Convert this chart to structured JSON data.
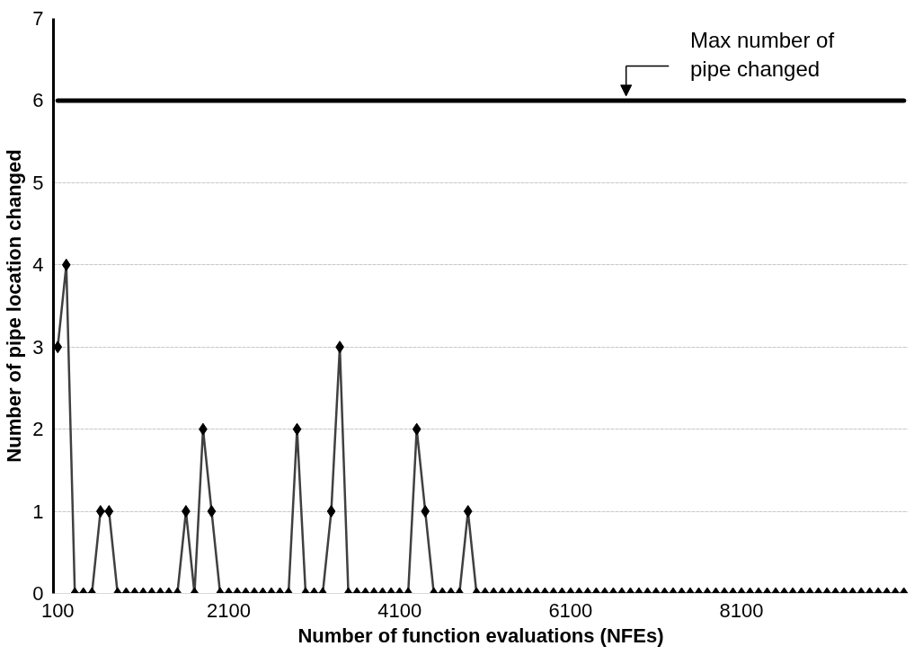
{
  "chart_data": {
    "type": "line",
    "xlabel": "Number of function evaluations (NFEs)",
    "ylabel": "Number of pipe location changed",
    "x": [
      100,
      200,
      300,
      400,
      500,
      600,
      700,
      800,
      900,
      1000,
      1100,
      1200,
      1300,
      1400,
      1500,
      1600,
      1700,
      1800,
      1900,
      2000,
      2100,
      2200,
      2300,
      2400,
      2500,
      2600,
      2700,
      2800,
      2900,
      3000,
      3100,
      3200,
      3300,
      3400,
      3500,
      3600,
      3700,
      3800,
      3900,
      4000,
      4100,
      4200,
      4300,
      4400,
      4500,
      4600,
      4700,
      4800,
      4900,
      5000,
      5100,
      5200,
      5300,
      5400,
      5500,
      5600,
      5700,
      5800,
      5900,
      6000,
      6100,
      6200,
      6300,
      6400,
      6500,
      6600,
      6700,
      6800,
      6900,
      7000,
      7100,
      7200,
      7300,
      7400,
      7500,
      7600,
      7700,
      7800,
      7900,
      8000,
      8100,
      8200,
      8300,
      8400,
      8500,
      8600,
      8700,
      8800,
      8900,
      9000,
      9100,
      9200,
      9300,
      9400,
      9500,
      9600,
      9700,
      9800,
      9900,
      10000
    ],
    "series": [
      {
        "color": "#000000",
        "values": [
          3,
          4,
          0,
          0,
          0,
          1,
          1,
          0,
          0,
          0,
          0,
          0,
          0,
          0,
          0,
          1,
          0,
          2,
          1,
          0,
          0,
          0,
          0,
          0,
          0,
          0,
          0,
          0,
          2,
          0,
          0,
          0,
          1,
          3,
          0,
          0,
          0,
          0,
          0,
          0,
          0,
          0,
          2,
          1,
          0,
          0,
          0,
          0,
          1,
          0,
          0,
          0,
          0,
          0,
          0,
          0,
          0,
          0,
          0,
          0,
          0,
          0,
          0,
          0,
          0,
          0,
          0,
          0,
          0,
          0,
          0,
          0,
          0,
          0,
          0,
          0,
          0,
          0,
          0,
          0,
          0,
          0,
          0,
          0,
          0,
          0,
          0,
          0,
          0,
          0,
          0,
          0,
          0,
          0,
          0,
          0,
          0,
          0,
          0,
          0
        ]
      }
    ],
    "marker": "diamond",
    "line_style": "solid",
    "ref_lines": [
      {
        "axis": "y",
        "value": 6,
        "label": "Max number of pipe changed",
        "color": "#000000"
      }
    ],
    "xlim": [
      50,
      10050
    ],
    "ylim": [
      0,
      7
    ],
    "xticks": [
      100,
      2100,
      4100,
      6100,
      8100
    ],
    "yticks": [
      0,
      1,
      2,
      3,
      4,
      5,
      6,
      7
    ],
    "grid": "y"
  }
}
